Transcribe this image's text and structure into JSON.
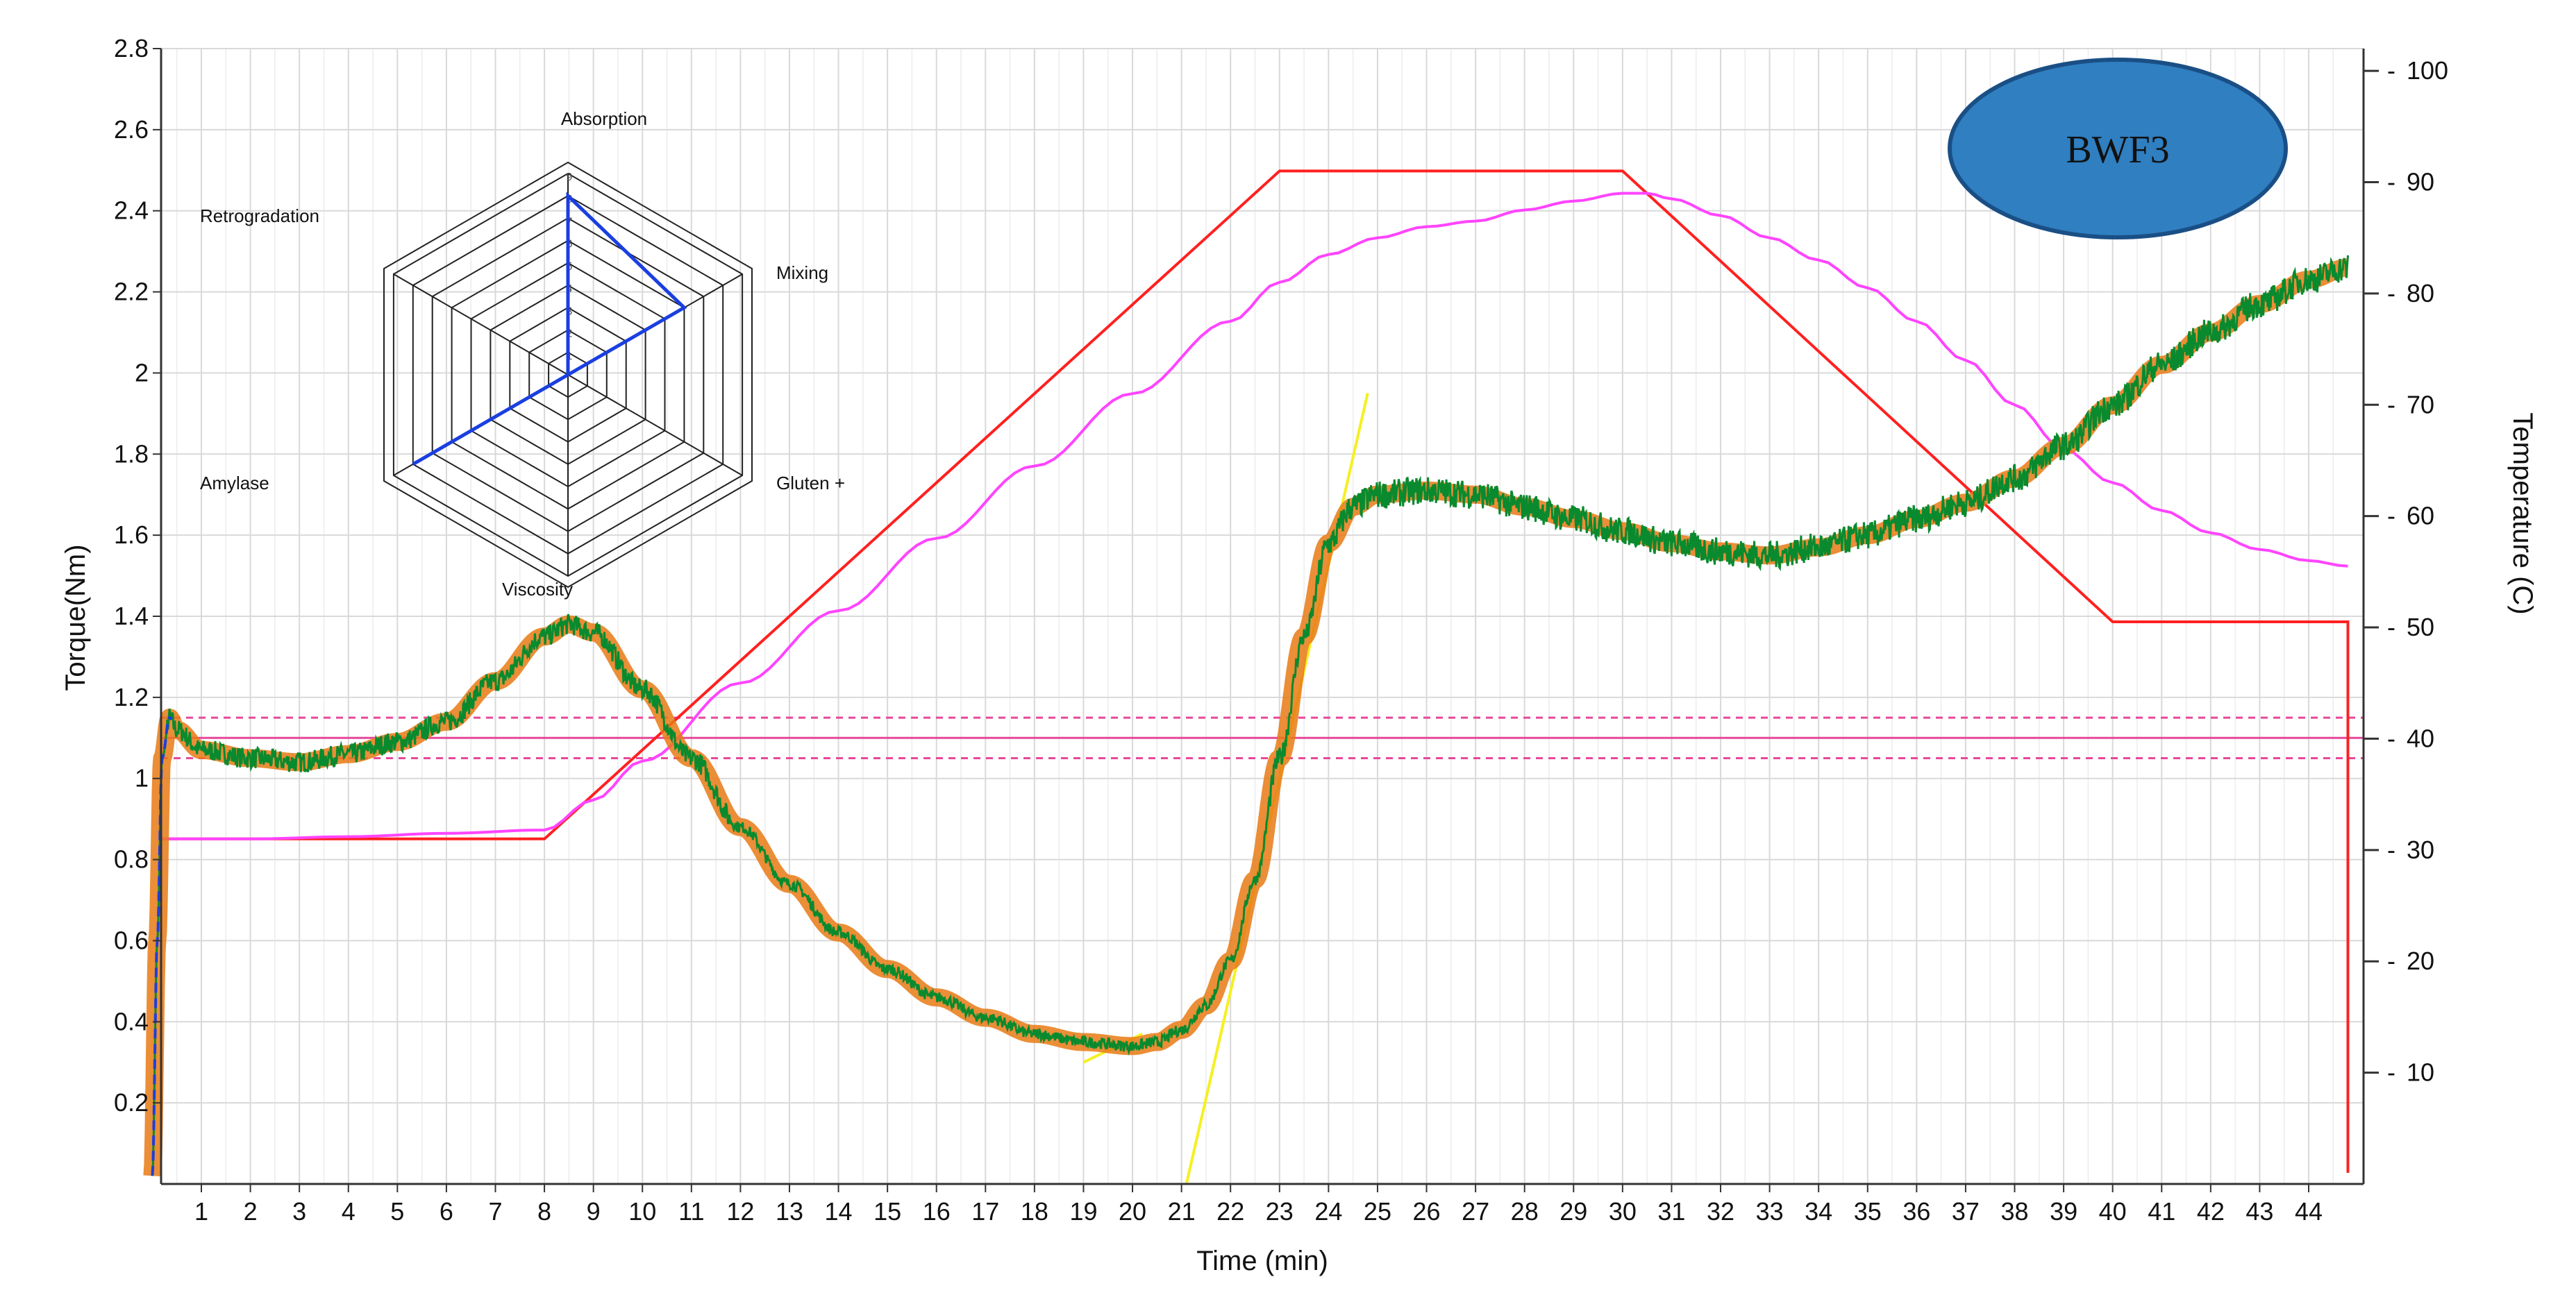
{
  "chart_data": {
    "type": "line",
    "badge": "BWF3",
    "xlabel": "Time (min)",
    "ylabel_left": "Torque(Nm)",
    "ylabel_right": "Temperature (C)",
    "xlim": [
      0,
      45
    ],
    "ylim_left": [
      0,
      2.8
    ],
    "ylim_right": [
      0,
      102
    ],
    "x_ticks": [
      1,
      2,
      3,
      4,
      5,
      6,
      7,
      8,
      9,
      10,
      11,
      12,
      13,
      14,
      15,
      16,
      17,
      18,
      19,
      20,
      21,
      22,
      23,
      24,
      25,
      26,
      27,
      28,
      29,
      30,
      31,
      32,
      33,
      34,
      35,
      36,
      37,
      38,
      39,
      40,
      41,
      42,
      43,
      44
    ],
    "y_ticks_left": [
      "0.2",
      "0.4",
      "0.6",
      "0.8",
      "1",
      "1.2",
      "1.4",
      "1.6",
      "1.8",
      "2",
      "2.2",
      "2.4",
      "2.6",
      "2.8"
    ],
    "y_ticks_right": [
      "10",
      "20",
      "30",
      "40",
      "50",
      "60",
      "70",
      "80",
      "90",
      "100"
    ],
    "grid": true,
    "colors": {
      "torque": "#0a8a2e",
      "torque_halo": "#e87a14",
      "temperature_setpoint": "#ff2020",
      "dough_temperature": "#ff44ff",
      "reference": "#e8479a",
      "tangent": "#f5f020",
      "radar": "#1a3fe0",
      "badge": "#2f7fc1"
    },
    "reference_lines": {
      "target": 1.1,
      "upper": 1.15,
      "lower": 1.05
    },
    "series": [
      {
        "kind": "torque",
        "x": [
          0,
          0.1,
          0.2,
          0.35,
          0.5,
          1,
          2,
          3,
          4,
          5,
          6,
          7,
          8,
          8.5,
          9,
          10,
          11,
          12,
          13,
          14,
          15,
          16,
          17,
          18,
          19,
          20,
          20.5,
          21,
          21.5,
          22,
          22.5,
          23,
          23.5,
          24,
          24.5,
          25,
          26,
          27,
          28,
          29,
          30,
          31,
          32,
          33,
          34,
          35,
          36,
          37,
          38,
          39,
          40,
          41,
          42,
          43,
          44,
          44.8
        ],
        "y": [
          0.02,
          0.6,
          1.05,
          1.15,
          1.12,
          1.07,
          1.05,
          1.04,
          1.06,
          1.09,
          1.14,
          1.24,
          1.35,
          1.38,
          1.36,
          1.22,
          1.05,
          0.88,
          0.74,
          0.62,
          0.53,
          0.46,
          0.41,
          0.37,
          0.35,
          0.34,
          0.35,
          0.38,
          0.44,
          0.55,
          0.75,
          1.05,
          1.35,
          1.58,
          1.67,
          1.7,
          1.71,
          1.7,
          1.67,
          1.64,
          1.61,
          1.58,
          1.56,
          1.55,
          1.57,
          1.6,
          1.64,
          1.68,
          1.74,
          1.82,
          1.92,
          2.02,
          2.1,
          2.17,
          2.23,
          2.26
        ]
      },
      {
        "kind": "temperature_setpoint",
        "x": [
          0.2,
          8,
          23,
          30,
          40,
          44.8,
          44.8
        ],
        "y": [
          31,
          31,
          91,
          91,
          50.5,
          50.5,
          1
        ]
      },
      {
        "kind": "dough_temperature",
        "x": [
          0.2,
          2,
          4,
          6,
          8,
          9,
          10,
          12,
          14,
          16,
          18,
          20,
          22,
          23,
          24,
          25,
          26,
          27,
          28,
          29,
          30,
          30.5,
          31,
          32,
          33,
          34,
          35,
          36,
          37,
          38,
          39,
          40,
          41,
          42,
          43,
          44,
          44.8
        ],
        "y": [
          31,
          31,
          31.2,
          31.5,
          31.8,
          34.5,
          38,
          45,
          51.5,
          58,
          64.5,
          71,
          77.5,
          81,
          83.5,
          85,
          86,
          86.5,
          87.5,
          88.3,
          89,
          89,
          88.5,
          87,
          85,
          83,
          80.5,
          77.5,
          74,
          70,
          66,
          63,
          60.5,
          58.5,
          57,
          56,
          55.5
        ]
      },
      {
        "kind": "tangent",
        "x": [
          21.1,
          24.8
        ],
        "y": [
          0.0,
          1.95
        ]
      },
      {
        "kind": "tangent",
        "x": [
          19,
          20.2
        ],
        "y": [
          0.3,
          0.37
        ]
      }
    ],
    "radar": {
      "labels": [
        "Absorption",
        "Mixing",
        "Gluten +",
        "Viscosity",
        "Amylase",
        "Retrogradation"
      ],
      "max": 9,
      "scale_labels": [
        "1",
        "2",
        "3",
        "4",
        "5",
        "6",
        "7",
        "8",
        "9"
      ],
      "values": [
        8,
        6,
        0,
        0,
        8,
        0
      ]
    }
  }
}
